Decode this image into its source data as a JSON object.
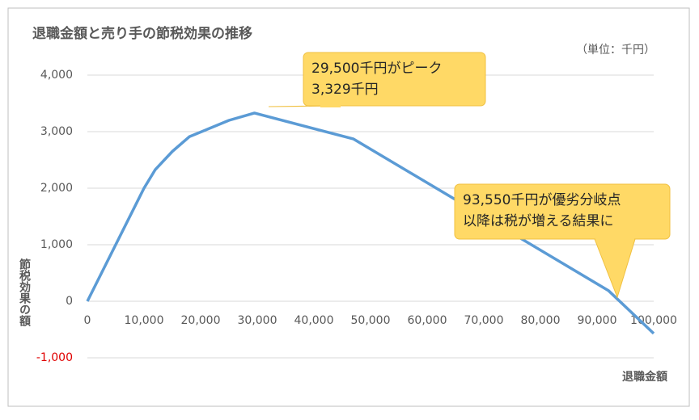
{
  "chart_data": {
    "type": "line",
    "title": "退職金額と売り手の節税効果の推移",
    "subtitle": "（単位：千円）",
    "x_label": "退職金額",
    "y_label": "節税効果の額",
    "x": [
      0,
      10000,
      12000,
      15000,
      18000,
      25000,
      29500,
      47000,
      92000,
      100000
    ],
    "series": [
      {
        "name": "節税効果の額",
        "color": "#5b9bd5",
        "values": [
          0,
          2000,
          2330,
          2650,
          2910,
          3200,
          3329,
          2870,
          190,
          -570
        ]
      }
    ],
    "xlim": [
      0,
      100000
    ],
    "xticks": [
      0,
      {
        "value": 10000,
        "label": "10,000"
      },
      {
        "value": 20000,
        "label": "20,000"
      },
      {
        "value": 30000,
        "label": "30,000"
      },
      {
        "value": 40000,
        "label": "40,000"
      },
      {
        "value": 50000,
        "label": "50,000"
      },
      {
        "value": 60000,
        "label": "60,000"
      },
      {
        "value": 70000,
        "label": "70,000"
      },
      {
        "value": 80000,
        "label": "80,000"
      },
      {
        "value": 90000,
        "label": "90,000"
      },
      {
        "value": 100000,
        "label": "100,000"
      }
    ],
    "ylim": [
      -1000,
      4000
    ],
    "yticks": [
      {
        "value": -1000,
        "label": "-1,000"
      },
      0,
      {
        "value": 1000,
        "label": "1,000"
      },
      {
        "value": 2000,
        "label": "2,000"
      },
      {
        "value": 3000,
        "label": "3,000"
      },
      {
        "value": 4000,
        "label": "4,000"
      }
    ],
    "negative_tick_color": "#e00000",
    "grid": true,
    "annotations": [
      {
        "lines": [
          "29,500千円がピーク",
          "3,329千円"
        ]
      },
      {
        "lines": [
          "93,550千円が優劣分岐点",
          "以降は税が増える結果に"
        ]
      }
    ]
  }
}
